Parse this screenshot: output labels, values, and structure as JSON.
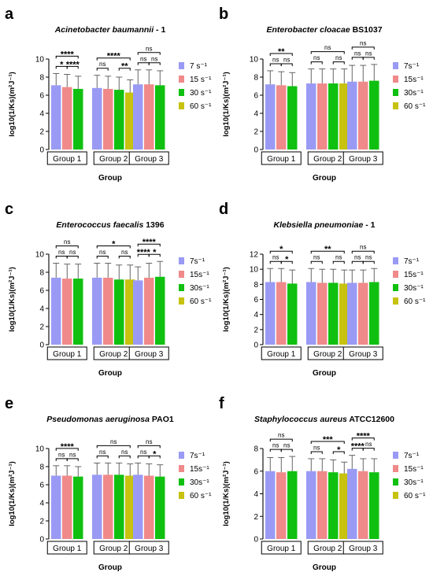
{
  "colors": {
    "c7": "#9a9af5",
    "c15": "#f08a8a",
    "c30": "#10c010",
    "c60": "#c6c20f"
  },
  "chart_data": [
    {
      "type": "bar",
      "panel_letter": "a",
      "title": {
        "species": "Acinetobacter baumannii",
        "strain": " - 1"
      },
      "xlabel": "Group",
      "ylabel": "log10(1/Ks)(m²J⁻¹)",
      "ylim": [
        0,
        10
      ],
      "yticks": [
        0,
        2,
        4,
        6,
        8,
        10
      ],
      "categories": [
        "Group 1",
        "Group 2",
        "Group 3"
      ],
      "legend": [
        "7 s⁻¹",
        "15 s⁻¹",
        "30 s⁻¹",
        "60 s⁻¹"
      ],
      "series": [
        {
          "values": [
            7.1,
            6.8,
            7.2
          ],
          "errors": [
            1.3,
            1.4,
            1.6
          ]
        },
        {
          "values": [
            6.9,
            6.7,
            7.2
          ],
          "errors": [
            1.4,
            1.4,
            1.6
          ]
        },
        {
          "values": [
            6.7,
            6.6,
            7.1
          ],
          "errors": [
            1.4,
            1.4,
            1.6
          ]
        },
        {
          "values": [
            null,
            6.3,
            null
          ],
          "errors": [
            null,
            1.4,
            null
          ]
        }
      ],
      "annotations": [
        {
          "group": 0,
          "from": 0,
          "to": 2,
          "text": "****",
          "level": 1
        },
        {
          "group": 0,
          "from": 0,
          "to": 1,
          "text": "*",
          "level": 0
        },
        {
          "group": 0,
          "from": 1,
          "to": 2,
          "text": "****",
          "level": 0
        },
        {
          "group": 1,
          "from": 0,
          "to": 3,
          "text": "****",
          "level": 1
        },
        {
          "group": 1,
          "from": 0,
          "to": 1,
          "text": "ns",
          "level": 0
        },
        {
          "group": 1,
          "from": 2,
          "to": 3,
          "text": "**",
          "level": 0
        },
        {
          "group": 2,
          "from": 0,
          "to": 2,
          "text": "ns",
          "level": 1
        },
        {
          "group": 2,
          "from": 0,
          "to": 1,
          "text": "ns",
          "level": 0
        },
        {
          "group": 2,
          "from": 1,
          "to": 2,
          "text": "ns",
          "level": 0
        }
      ]
    },
    {
      "type": "bar",
      "panel_letter": "b",
      "title": {
        "species": "Enterobacter cloacae",
        "strain": " BS1037"
      },
      "xlabel": "Group",
      "ylabel": "log10(1/Ks)(m²J⁻¹)",
      "ylim": [
        0,
        10
      ],
      "yticks": [
        0,
        2,
        4,
        6,
        8,
        10
      ],
      "categories": [
        "Group 1",
        "Group 2",
        "Group 3"
      ],
      "legend": [
        "7s⁻¹",
        "15s⁻¹",
        "30s⁻¹",
        "60 s⁻¹"
      ],
      "series": [
        {
          "values": [
            7.2,
            7.3,
            7.5
          ],
          "errors": [
            1.5,
            1.6,
            1.8
          ]
        },
        {
          "values": [
            7.1,
            7.3,
            7.5
          ],
          "errors": [
            1.5,
            1.6,
            1.8
          ]
        },
        {
          "values": [
            7.0,
            7.3,
            7.6
          ],
          "errors": [
            1.5,
            1.6,
            1.8
          ]
        },
        {
          "values": [
            null,
            7.3,
            null
          ],
          "errors": [
            null,
            1.6,
            null
          ]
        }
      ],
      "annotations": [
        {
          "group": 0,
          "from": 0,
          "to": 2,
          "text": "**",
          "level": 1
        },
        {
          "group": 0,
          "from": 0,
          "to": 1,
          "text": "ns",
          "level": 0
        },
        {
          "group": 0,
          "from": 1,
          "to": 2,
          "text": "ns",
          "level": 0
        },
        {
          "group": 1,
          "from": 0,
          "to": 3,
          "text": "ns",
          "level": 1
        },
        {
          "group": 1,
          "from": 0,
          "to": 1,
          "text": "ns",
          "level": 0
        },
        {
          "group": 1,
          "from": 2,
          "to": 3,
          "text": "ns",
          "level": 0
        },
        {
          "group": 2,
          "from": 0,
          "to": 2,
          "text": "ns",
          "level": 1
        },
        {
          "group": 2,
          "from": 0,
          "to": 1,
          "text": "ns",
          "level": 0
        },
        {
          "group": 2,
          "from": 1,
          "to": 2,
          "text": "ns",
          "level": 0
        }
      ]
    },
    {
      "type": "bar",
      "panel_letter": "c",
      "title": {
        "species": "Enterococcus faecalis",
        "strain": " 1396"
      },
      "xlabel": "Group",
      "ylabel": "log10(1/Ks)(m²J⁻¹)",
      "ylim": [
        0,
        10
      ],
      "yticks": [
        0,
        2,
        4,
        6,
        8,
        10
      ],
      "categories": [
        "Group 1",
        "Group 2",
        "Group 3"
      ],
      "legend": [
        "7s⁻¹",
        "15s⁻¹",
        "30s⁻¹",
        "60 s⁻¹"
      ],
      "series": [
        {
          "values": [
            7.4,
            7.4,
            7.1
          ],
          "errors": [
            1.6,
            1.6,
            1.5
          ]
        },
        {
          "values": [
            7.3,
            7.4,
            7.4
          ],
          "errors": [
            1.6,
            1.6,
            1.6
          ]
        },
        {
          "values": [
            7.3,
            7.2,
            7.5
          ],
          "errors": [
            1.6,
            1.6,
            1.7
          ]
        },
        {
          "values": [
            null,
            7.2,
            null
          ],
          "errors": [
            null,
            1.6,
            null
          ]
        }
      ],
      "annotations": [
        {
          "group": 0,
          "from": 0,
          "to": 2,
          "text": "ns",
          "level": 1
        },
        {
          "group": 0,
          "from": 0,
          "to": 1,
          "text": "ns",
          "level": 0
        },
        {
          "group": 0,
          "from": 1,
          "to": 2,
          "text": "ns",
          "level": 0
        },
        {
          "group": 1,
          "from": 0,
          "to": 3,
          "text": "*",
          "level": 1
        },
        {
          "group": 1,
          "from": 0,
          "to": 1,
          "text": "ns",
          "level": 0
        },
        {
          "group": 1,
          "from": 2,
          "to": 3,
          "text": "ns",
          "level": 0
        },
        {
          "group": 2,
          "from": 0,
          "to": 2,
          "text": "****",
          "level": 1
        },
        {
          "group": 2,
          "from": 0,
          "to": 1,
          "text": "****",
          "level": 0
        },
        {
          "group": 2,
          "from": 1,
          "to": 2,
          "text": "*",
          "level": 0
        }
      ]
    },
    {
      "type": "bar",
      "panel_letter": "d",
      "title": {
        "species": "Klebsiella pneumoniae",
        "strain": " - 1"
      },
      "xlabel": "Group",
      "ylabel": "log10(1/Ks)(m²J⁻¹)",
      "ylim": [
        0,
        12
      ],
      "yticks": [
        0,
        2,
        4,
        6,
        8,
        10,
        12
      ],
      "categories": [
        "Group 1",
        "Group 2",
        "Group 3"
      ],
      "legend": [
        "7s⁻¹",
        "15s⁻¹",
        "30s⁻¹",
        "60 s⁻¹"
      ],
      "series": [
        {
          "values": [
            8.3,
            8.3,
            8.2
          ],
          "errors": [
            1.8,
            1.8,
            1.7
          ]
        },
        {
          "values": [
            8.3,
            8.2,
            8.2
          ],
          "errors": [
            1.8,
            1.8,
            1.7
          ]
        },
        {
          "values": [
            8.1,
            8.2,
            8.3
          ],
          "errors": [
            1.8,
            1.8,
            1.8
          ]
        },
        {
          "values": [
            null,
            8.1,
            null
          ],
          "errors": [
            null,
            1.8,
            null
          ]
        }
      ],
      "annotations": [
        {
          "group": 0,
          "from": 0,
          "to": 2,
          "text": "*",
          "level": 1
        },
        {
          "group": 0,
          "from": 0,
          "to": 1,
          "text": "ns",
          "level": 0
        },
        {
          "group": 0,
          "from": 1,
          "to": 2,
          "text": "*",
          "level": 0
        },
        {
          "group": 1,
          "from": 0,
          "to": 3,
          "text": "**",
          "level": 1
        },
        {
          "group": 1,
          "from": 0,
          "to": 1,
          "text": "ns",
          "level": 0
        },
        {
          "group": 1,
          "from": 2,
          "to": 3,
          "text": "ns",
          "level": 0
        },
        {
          "group": 2,
          "from": 0,
          "to": 2,
          "text": "ns",
          "level": 1
        },
        {
          "group": 2,
          "from": 0,
          "to": 1,
          "text": "ns",
          "level": 0
        },
        {
          "group": 2,
          "from": 1,
          "to": 2,
          "text": "ns",
          "level": 0
        }
      ]
    },
    {
      "type": "bar",
      "panel_letter": "e",
      "title": {
        "species": "Pseudomonas aeruginosa",
        "strain": " PAO1"
      },
      "xlabel": "Group",
      "ylabel": "log10(1/Ks)(m²J⁻¹)",
      "ylim": [
        0,
        10
      ],
      "yticks": [
        0,
        2,
        4,
        6,
        8,
        10
      ],
      "categories": [
        "Group 1",
        "Group 2",
        "Group 3"
      ],
      "legend": [
        "7s⁻¹",
        "15s⁻¹",
        "30s⁻¹",
        "60 s⁻¹"
      ],
      "series": [
        {
          "values": [
            7.0,
            7.1,
            7.1
          ],
          "errors": [
            1.1,
            1.3,
            1.3
          ]
        },
        {
          "values": [
            7.0,
            7.1,
            7.0
          ],
          "errors": [
            1.1,
            1.3,
            1.3
          ]
        },
        {
          "values": [
            6.9,
            7.1,
            6.9
          ],
          "errors": [
            1.1,
            1.3,
            1.3
          ]
        },
        {
          "values": [
            null,
            7.0,
            null
          ],
          "errors": [
            null,
            1.3,
            null
          ]
        }
      ],
      "annotations": [
        {
          "group": 0,
          "from": 0,
          "to": 2,
          "text": "****",
          "level": 1
        },
        {
          "group": 0,
          "from": 0,
          "to": 1,
          "text": "ns",
          "level": 0
        },
        {
          "group": 0,
          "from": 1,
          "to": 2,
          "text": "ns",
          "level": 0
        },
        {
          "group": 1,
          "from": 0,
          "to": 3,
          "text": "ns",
          "level": 1
        },
        {
          "group": 1,
          "from": 0,
          "to": 1,
          "text": "ns",
          "level": 0
        },
        {
          "group": 1,
          "from": 2,
          "to": 3,
          "text": "ns",
          "level": 0
        },
        {
          "group": 2,
          "from": 0,
          "to": 2,
          "text": "ns",
          "level": 1
        },
        {
          "group": 2,
          "from": 0,
          "to": 1,
          "text": "ns",
          "level": 0
        },
        {
          "group": 2,
          "from": 1,
          "to": 2,
          "text": "*",
          "level": 0
        }
      ]
    },
    {
      "type": "bar",
      "panel_letter": "f",
      "title": {
        "species": "Staphylococcus aureus",
        "strain": " ATCC12600"
      },
      "xlabel": "Group",
      "ylabel": "log10(1/Ks)(m²J⁻¹)",
      "ylim": [
        0,
        8
      ],
      "yticks": [
        0,
        2,
        4,
        6,
        8
      ],
      "categories": [
        "Group 1",
        "Group 2",
        "Group 3"
      ],
      "legend": [
        "7s⁻¹",
        "15s⁻¹",
        "30s⁻¹",
        "60 s⁻¹"
      ],
      "series": [
        {
          "values": [
            6.0,
            6.0,
            6.2
          ],
          "errors": [
            1.2,
            1.1,
            1.2
          ]
        },
        {
          "values": [
            5.9,
            6.0,
            6.0
          ],
          "errors": [
            1.3,
            1.1,
            1.1
          ]
        },
        {
          "values": [
            6.0,
            5.9,
            5.9
          ],
          "errors": [
            1.3,
            1.1,
            1.2
          ]
        },
        {
          "values": [
            null,
            5.8,
            null
          ],
          "errors": [
            null,
            1.0,
            null
          ]
        }
      ],
      "annotations": [
        {
          "group": 0,
          "from": 0,
          "to": 2,
          "text": "ns",
          "level": 1
        },
        {
          "group": 0,
          "from": 0,
          "to": 1,
          "text": "ns",
          "level": 0
        },
        {
          "group": 0,
          "from": 1,
          "to": 2,
          "text": "ns",
          "level": 0
        },
        {
          "group": 1,
          "from": 0,
          "to": 3,
          "text": "***",
          "level": 1
        },
        {
          "group": 1,
          "from": 0,
          "to": 1,
          "text": "ns",
          "level": 0
        },
        {
          "group": 1,
          "from": 2,
          "to": 3,
          "text": "*",
          "level": 0
        },
        {
          "group": 2,
          "from": 0,
          "to": 2,
          "text": "****",
          "level": 1
        },
        {
          "group": 2,
          "from": 0,
          "to": 1,
          "text": "****",
          "level": 0
        },
        {
          "group": 2,
          "from": 1,
          "to": 2,
          "text": "ns",
          "level": 0
        }
      ]
    }
  ]
}
